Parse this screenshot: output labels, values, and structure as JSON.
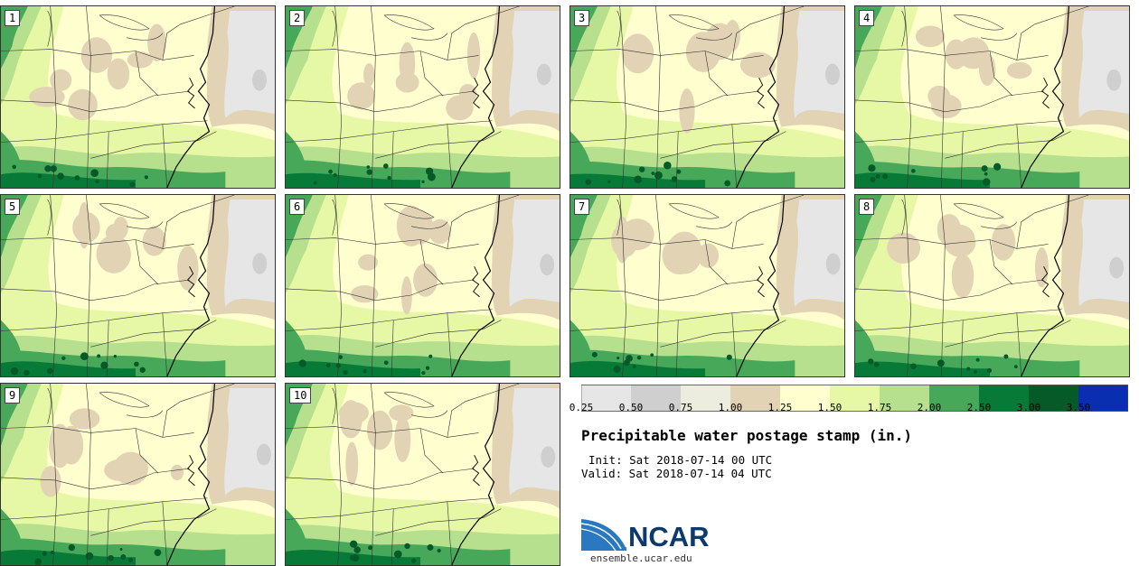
{
  "panels": [
    {
      "label": "1"
    },
    {
      "label": "2"
    },
    {
      "label": "3"
    },
    {
      "label": "4"
    },
    {
      "label": "5"
    },
    {
      "label": "6"
    },
    {
      "label": "7"
    },
    {
      "label": "8"
    },
    {
      "label": "9"
    },
    {
      "label": "10"
    }
  ],
  "colorbar": {
    "bins": [
      {
        "color": "#e6e6e6"
      },
      {
        "color": "#cfcfcf"
      },
      {
        "color": "#ececdf"
      },
      {
        "color": "#e2d3b5"
      },
      {
        "color": "#fefecf"
      },
      {
        "color": "#e6f7a6"
      },
      {
        "color": "#b7e08e"
      },
      {
        "color": "#48a85a"
      },
      {
        "color": "#087a38"
      },
      {
        "color": "#055a28"
      },
      {
        "color": "#0a2eb0"
      }
    ],
    "ticks": [
      "0.25",
      "0.50",
      "0.75",
      "1.00",
      "1.25",
      "1.50",
      "1.75",
      "2.00",
      "2.50",
      "3.00",
      "3.50"
    ]
  },
  "title": "Precipitable water postage stamp (in.)",
  "init": "Init: Sat 2018-07-14 00 UTC",
  "valid": "Valid: Sat 2018-07-14 04 UTC",
  "logo": {
    "text": "NCAR"
  },
  "site": "ensemble.ucar.edu"
}
